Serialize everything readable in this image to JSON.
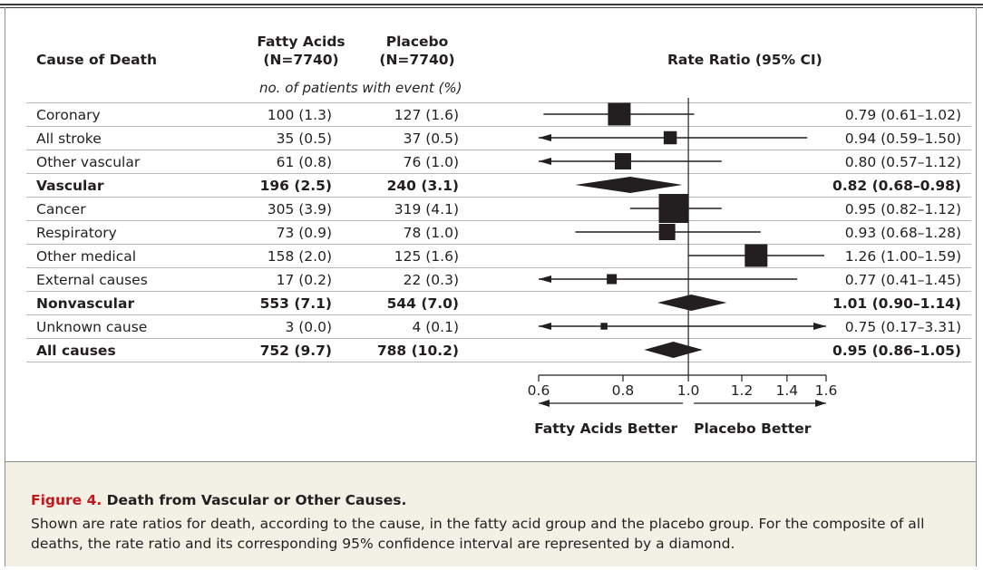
{
  "header": {
    "col_cause": "Cause of Death",
    "col_fa_line1": "Fatty Acids",
    "col_fa_line2": "(N=7740)",
    "col_pl_line1": "Placebo",
    "col_pl_line2": "(N=7740)",
    "col_rr": "Rate Ratio (95% CI)",
    "subheader": "no. of patients with event (%)"
  },
  "rows": [
    {
      "cause": "Coronary",
      "fa": "100 (1.3)",
      "pl": "127 (1.6)",
      "rr_text": "0.79 (0.61–1.02)",
      "bold": false
    },
    {
      "cause": "All stroke",
      "fa": "35 (0.5)",
      "pl": "37 (0.5)",
      "rr_text": "0.94 (0.59–1.50)",
      "bold": false
    },
    {
      "cause": "Other vascular",
      "fa": "61 (0.8)",
      "pl": "76 (1.0)",
      "rr_text": "0.80 (0.57–1.12)",
      "bold": false
    },
    {
      "cause": "Vascular",
      "fa": "196 (2.5)",
      "pl": "240 (3.1)",
      "rr_text": "0.82 (0.68–0.98)",
      "bold": true
    },
    {
      "cause": "Cancer",
      "fa": "305 (3.9)",
      "pl": "319 (4.1)",
      "rr_text": "0.95 (0.82–1.12)",
      "bold": false
    },
    {
      "cause": "Respiratory",
      "fa": "73 (0.9)",
      "pl": "78 (1.0)",
      "rr_text": "0.93 (0.68–1.28)",
      "bold": false
    },
    {
      "cause": "Other medical",
      "fa": "158 (2.0)",
      "pl": "125 (1.6)",
      "rr_text": "1.26 (1.00–1.59)",
      "bold": false
    },
    {
      "cause": "External causes",
      "fa": "17 (0.2)",
      "pl": "22 (0.3)",
      "rr_text": "0.77 (0.41–1.45)",
      "bold": false
    },
    {
      "cause": "Nonvascular",
      "fa": "553 (7.1)",
      "pl": "544 (7.0)",
      "rr_text": "1.01 (0.90–1.14)",
      "bold": true
    },
    {
      "cause": "Unknown cause",
      "fa": "3 (0.0)",
      "pl": "4 (0.1)",
      "rr_text": "0.75 (0.17–3.31)",
      "bold": false
    },
    {
      "cause": "All causes",
      "fa": "752 (9.7)",
      "pl": "788 (10.2)",
      "rr_text": "0.95 (0.86–1.05)",
      "bold": true
    }
  ],
  "chart_data": {
    "type": "forest",
    "xlabel": "",
    "xlim": [
      0.6,
      1.6
    ],
    "xscale": "log",
    "reference_line": 1.0,
    "ticks": [
      0.6,
      0.8,
      1.0,
      1.2,
      1.4,
      1.6
    ],
    "tick_labels": [
      "0.6",
      "0.8",
      "1.0",
      "1.2",
      "1.4",
      "1.6"
    ],
    "favors_left": "Fatty Acids Better",
    "favors_right": "Placebo Better",
    "estimates": [
      {
        "label": "Coronary",
        "rr": 0.79,
        "lo": 0.61,
        "hi": 1.02,
        "marker": "square",
        "size": 3
      },
      {
        "label": "All stroke",
        "rr": 0.94,
        "lo": 0.59,
        "hi": 1.5,
        "marker": "square",
        "size": 1.5
      },
      {
        "label": "Other vascular",
        "rr": 0.8,
        "lo": 0.57,
        "hi": 1.12,
        "marker": "square",
        "size": 2
      },
      {
        "label": "Vascular",
        "rr": 0.82,
        "lo": 0.68,
        "hi": 0.98,
        "marker": "diamond"
      },
      {
        "label": "Cancer",
        "rr": 0.95,
        "lo": 0.82,
        "hi": 1.12,
        "marker": "square",
        "size": 4
      },
      {
        "label": "Respiratory",
        "rr": 0.93,
        "lo": 0.68,
        "hi": 1.28,
        "marker": "square",
        "size": 2
      },
      {
        "label": "Other medical",
        "rr": 1.26,
        "lo": 1.0,
        "hi": 1.59,
        "marker": "square",
        "size": 3
      },
      {
        "label": "External causes",
        "rr": 0.77,
        "lo": 0.41,
        "hi": 1.45,
        "marker": "square",
        "size": 1
      },
      {
        "label": "Nonvascular",
        "rr": 1.01,
        "lo": 0.9,
        "hi": 1.14,
        "marker": "diamond"
      },
      {
        "label": "Unknown cause",
        "rr": 0.75,
        "lo": 0.17,
        "hi": 3.31,
        "marker": "square",
        "size": 0.5
      },
      {
        "label": "All causes",
        "rr": 0.95,
        "lo": 0.86,
        "hi": 1.05,
        "marker": "diamond"
      }
    ]
  },
  "caption": {
    "label": "Figure 4.",
    "title": "Death from Vascular or Other Causes.",
    "body": "Shown are rate ratios for death, according to the cause, in the fatty acid group and the placebo group. For the composite of all deaths, the rate ratio and its corresponding 95% confidence interval are represented by a diamond."
  }
}
